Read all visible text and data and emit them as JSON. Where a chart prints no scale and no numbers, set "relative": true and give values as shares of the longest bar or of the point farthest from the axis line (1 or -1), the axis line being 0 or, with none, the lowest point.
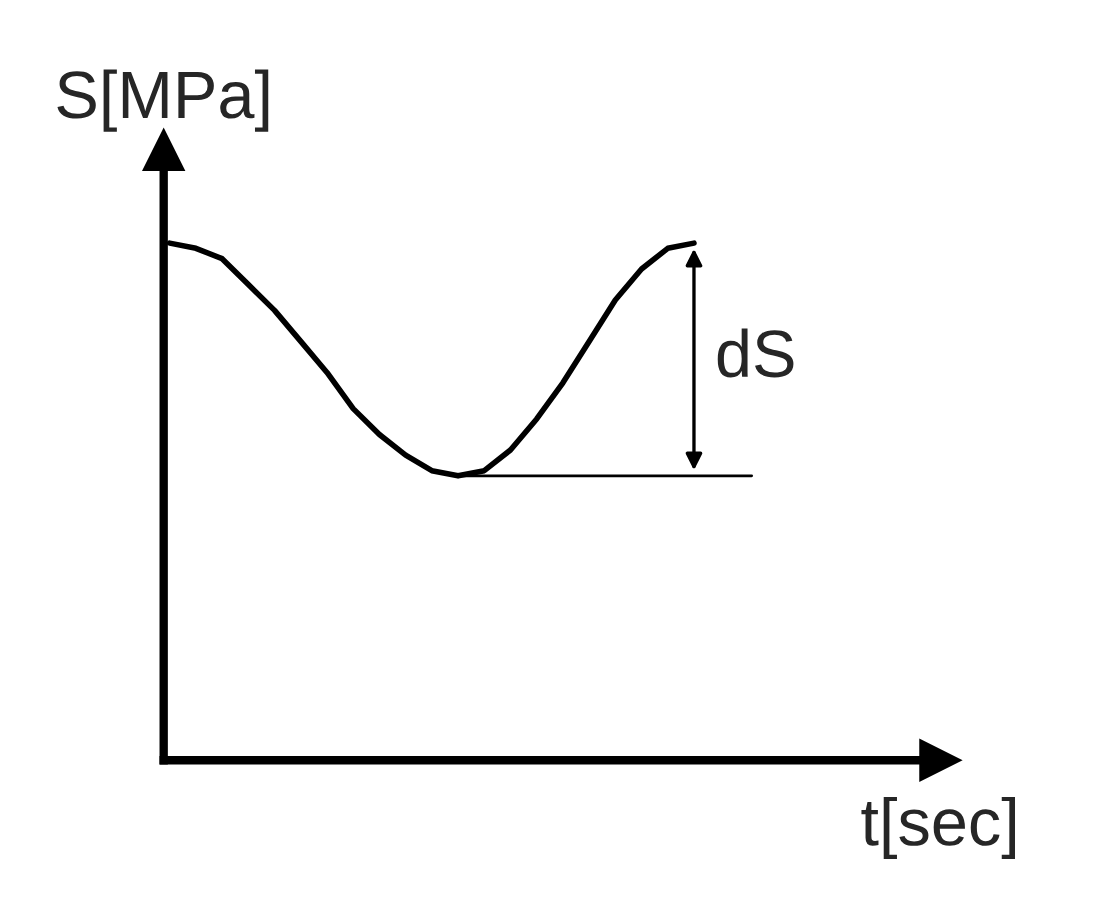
{
  "chart_data": {
    "type": "line",
    "relative": true,
    "xlabel": "t[sec]",
    "ylabel": "S[MPa]",
    "color": "#000000",
    "marker": "none",
    "line_style": "solid",
    "grid": false,
    "legend": false,
    "categories": [
      null,
      null,
      null,
      null,
      null,
      null,
      null,
      null,
      null,
      null,
      null,
      null,
      null,
      null,
      null,
      null,
      null,
      null,
      null,
      null,
      null
    ],
    "values": [
      1.0,
      0.99,
      0.97,
      0.92,
      0.87,
      0.81,
      0.75,
      0.68,
      0.63,
      0.59,
      0.56,
      0.55,
      0.56,
      0.6,
      0.66,
      0.73,
      0.81,
      0.89,
      0.95,
      0.99,
      1.0
    ],
    "ref_lines": [
      {
        "axis": "y",
        "value": 0.55,
        "color": "#000000",
        "line_style": "solid"
      }
    ],
    "annotations": [
      "dS"
    ]
  }
}
